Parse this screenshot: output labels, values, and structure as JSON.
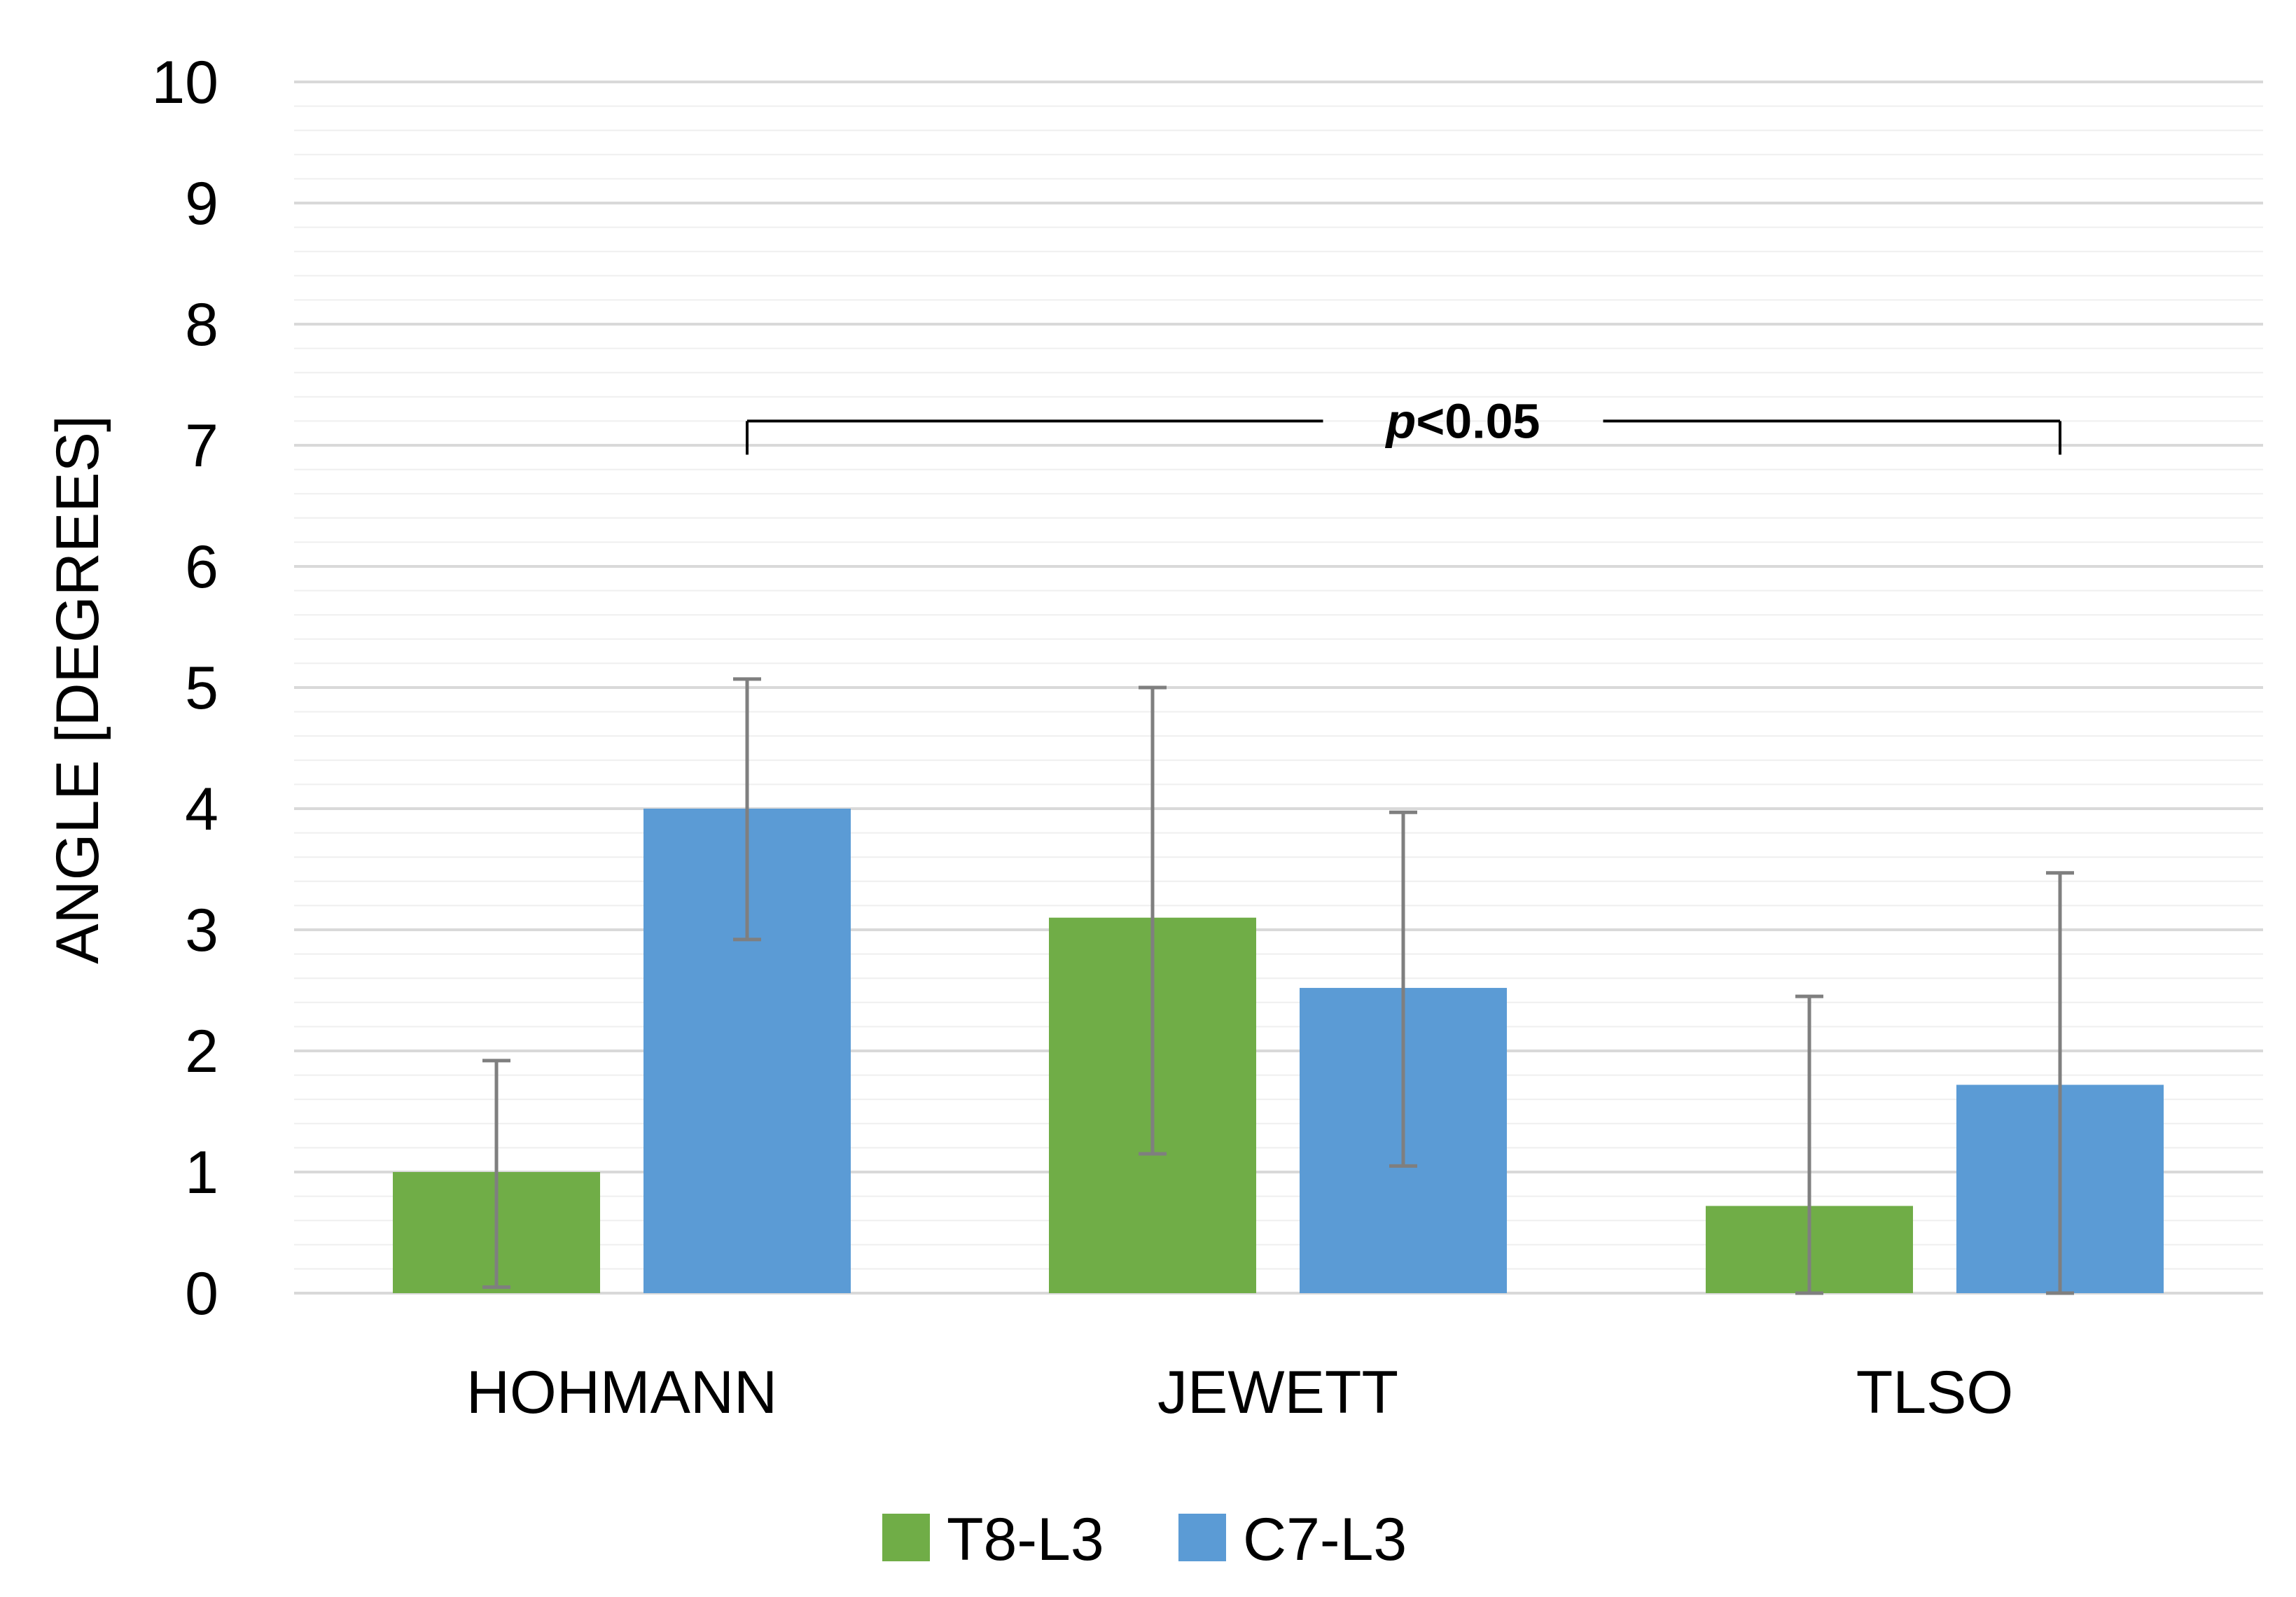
{
  "chart_data": {
    "type": "bar",
    "title": "",
    "xlabel": "",
    "ylabel": "ANGLE [DEGREES]",
    "ylim": [
      0,
      10
    ],
    "yticks": [
      "0",
      "1",
      "2",
      "3",
      "4",
      "5",
      "6",
      "7",
      "8",
      "9",
      "10"
    ],
    "minor_gridlines": true,
    "legend_position": "bottom",
    "categories": [
      "HOHMANN",
      "JEWETT",
      "TLSO"
    ],
    "series": [
      {
        "name": "T8-L3",
        "color": "#70ad47",
        "values": [
          1.0,
          3.1,
          0.72
        ],
        "error_low": [
          0.05,
          1.15,
          0.0
        ],
        "error_high": [
          1.92,
          5.0,
          2.45
        ]
      },
      {
        "name": "C7-L3",
        "color": "#5b9bd5",
        "values": [
          4.0,
          2.52,
          1.72
        ],
        "error_low": [
          2.92,
          1.05,
          0.0
        ],
        "error_high": [
          5.07,
          3.97,
          3.47
        ]
      }
    ],
    "annotation": {
      "text_italic": "p",
      "text_rest": "<0.05",
      "from_category": "HOHMANN",
      "to_category": "TLSO",
      "level": 7.2
    },
    "errorbar_color": "#7f7f7f",
    "gridline_color": "#d9d9d9"
  }
}
